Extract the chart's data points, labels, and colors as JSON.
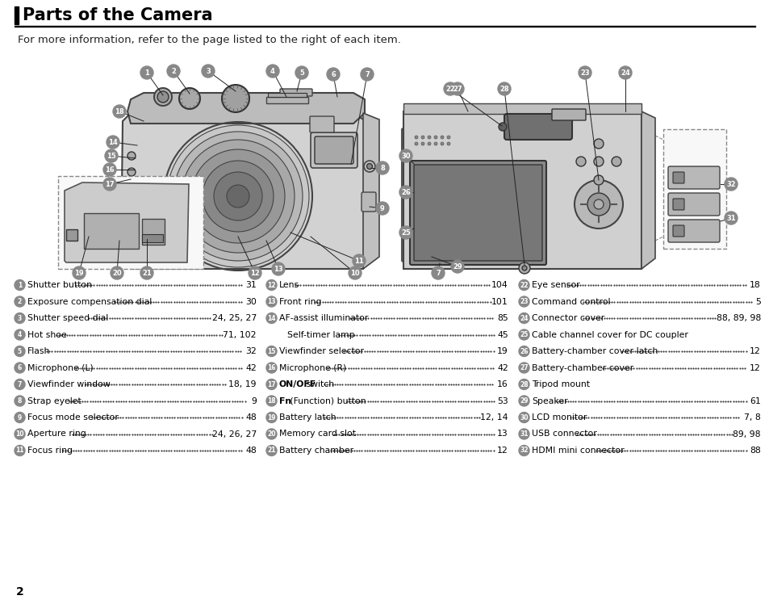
{
  "title": "Parts of the Camera",
  "subtitle": "For more information, refer to the page listed to the right of each item.",
  "page_number": "2",
  "background_color": "#ffffff",
  "col1_items": [
    {
      "num": "1",
      "text": "Shutter button",
      "page": "31"
    },
    {
      "num": "2",
      "text": "Exposure compensation dial",
      "page": "30"
    },
    {
      "num": "3",
      "text": "Shutter speed dial",
      "page": "24, 25, 27"
    },
    {
      "num": "4",
      "text": "Hot shoe",
      "page": "71, 102"
    },
    {
      "num": "5",
      "text": "Flash",
      "page": "32"
    },
    {
      "num": "6",
      "text": "Microphone (L)",
      "page": "42"
    },
    {
      "num": "7",
      "text": "Viewfinder window",
      "page": "18, 19"
    },
    {
      "num": "8",
      "text": "Strap eyelet",
      "page": "9"
    },
    {
      "num": "9",
      "text": "Focus mode selector",
      "page": "48"
    },
    {
      "num": "10",
      "text": "Aperture ring",
      "page": "24, 26, 27"
    },
    {
      "num": "11",
      "text": "Focus ring",
      "page": "48"
    }
  ],
  "col2_items": [
    {
      "num": "12",
      "text": "Lens",
      "page": "104"
    },
    {
      "num": "13",
      "text": "Front ring",
      "page": "101"
    },
    {
      "num": "14",
      "text": "AF-assist illuminator",
      "page": "85"
    },
    {
      "num": "",
      "text": "Self-timer lamp",
      "page": "45"
    },
    {
      "num": "15",
      "text": "Viewfinder selector",
      "page": "19"
    },
    {
      "num": "16",
      "text": "Microphone (R)",
      "page": "42"
    },
    {
      "num": "17",
      "text": "ON/OFF switch",
      "page": "16",
      "bold_part": "ON/OFF"
    },
    {
      "num": "18",
      "text": "Fn (Function) button",
      "page": "53",
      "bold_part": "Fn"
    },
    {
      "num": "19",
      "text": "Battery latch",
      "page": "12, 14"
    },
    {
      "num": "20",
      "text": "Memory card slot",
      "page": "13"
    },
    {
      "num": "21",
      "text": "Battery chamber",
      "page": "12"
    }
  ],
  "col3_items": [
    {
      "num": "22",
      "text": "Eye sensor",
      "page": "18"
    },
    {
      "num": "23",
      "text": "Command control",
      "page": "5"
    },
    {
      "num": "24",
      "text": "Connector cover",
      "page": "88, 89, 98"
    },
    {
      "num": "25",
      "text": "Cable channel cover for DC coupler",
      "page": ""
    },
    {
      "num": "26",
      "text": "Battery-chamber cover latch",
      "page": "12"
    },
    {
      "num": "27",
      "text": "Battery-chamber cover",
      "page": "12"
    },
    {
      "num": "28",
      "text": "Tripod mount",
      "page": ""
    },
    {
      "num": "29",
      "text": "Speaker",
      "page": "61"
    },
    {
      "num": "30",
      "text": "LCD monitor",
      "page": "7, 8"
    },
    {
      "num": "31",
      "text": "USB connector",
      "page": "89, 98"
    },
    {
      "num": "32",
      "text": "HDMI mini connector",
      "page": "88"
    }
  ]
}
